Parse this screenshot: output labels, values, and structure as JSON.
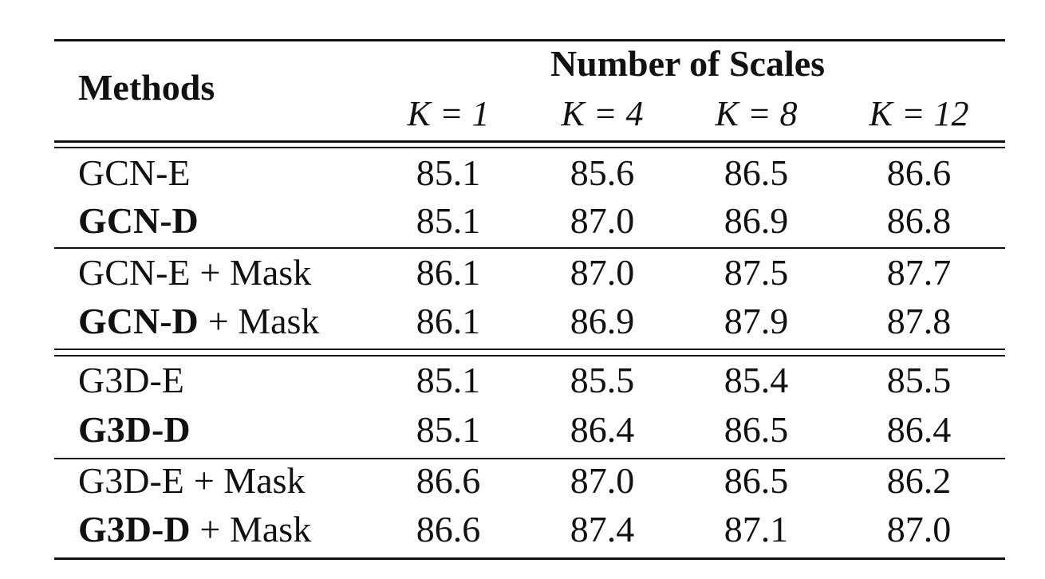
{
  "table": {
    "header": {
      "methods": "Methods",
      "group": "Number of Scales",
      "columns": [
        "K = 1",
        "K = 4",
        "K = 8",
        "K = 12"
      ]
    },
    "rows": [
      {
        "method": [
          {
            "text": "GCN-E",
            "bold": false
          }
        ],
        "cells": [
          "85.1",
          "85.6",
          "86.5",
          "86.6"
        ]
      },
      {
        "method": [
          {
            "text": "GCN-D",
            "bold": true
          }
        ],
        "cells": [
          "85.1",
          "87.0",
          "86.9",
          "86.8"
        ]
      },
      {
        "method": [
          {
            "text": "GCN-E",
            "bold": false
          },
          {
            "text": "+ Mask",
            "bold": false
          }
        ],
        "cells": [
          "86.1",
          "87.0",
          "87.5",
          "87.7"
        ]
      },
      {
        "method": [
          {
            "text": "GCN-D",
            "bold": true
          },
          {
            "text": "+ Mask",
            "bold": false
          }
        ],
        "cells": [
          "86.1",
          "86.9",
          "87.9",
          "87.8"
        ]
      },
      {
        "method": [
          {
            "text": "G3D-E",
            "bold": false
          }
        ],
        "cells": [
          "85.1",
          "85.5",
          "85.4",
          "85.5"
        ]
      },
      {
        "method": [
          {
            "text": "G3D-D",
            "bold": true
          }
        ],
        "cells": [
          "85.1",
          "86.4",
          "86.5",
          "86.4"
        ]
      },
      {
        "method": [
          {
            "text": "G3D-E",
            "bold": false
          },
          {
            "text": "+ Mask",
            "bold": false
          }
        ],
        "cells": [
          "86.6",
          "87.0",
          "86.5",
          "86.2"
        ]
      },
      {
        "method": [
          {
            "text": "G3D-D",
            "bold": true
          },
          {
            "text": "+ Mask",
            "bold": false
          }
        ],
        "cells": [
          "86.6",
          "87.4",
          "87.1",
          "87.0"
        ]
      }
    ]
  }
}
